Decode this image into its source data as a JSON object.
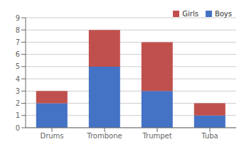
{
  "chart_data": {
    "type": "bar",
    "stacked": true,
    "categories": [
      "Drums",
      "Trombone",
      "Trumpet",
      "Tuba"
    ],
    "series": [
      {
        "name": "Boys",
        "color": "#4472C4",
        "values": [
          2,
          5,
          3,
          1
        ]
      },
      {
        "name": "Girls",
        "color": "#C0504D",
        "values": [
          1,
          3,
          4,
          1
        ]
      }
    ],
    "ylim": [
      0,
      9
    ],
    "yticks": [
      0,
      1,
      2,
      3,
      4,
      5,
      6,
      7,
      8,
      9
    ],
    "grid": true,
    "legend": "upper right"
  }
}
